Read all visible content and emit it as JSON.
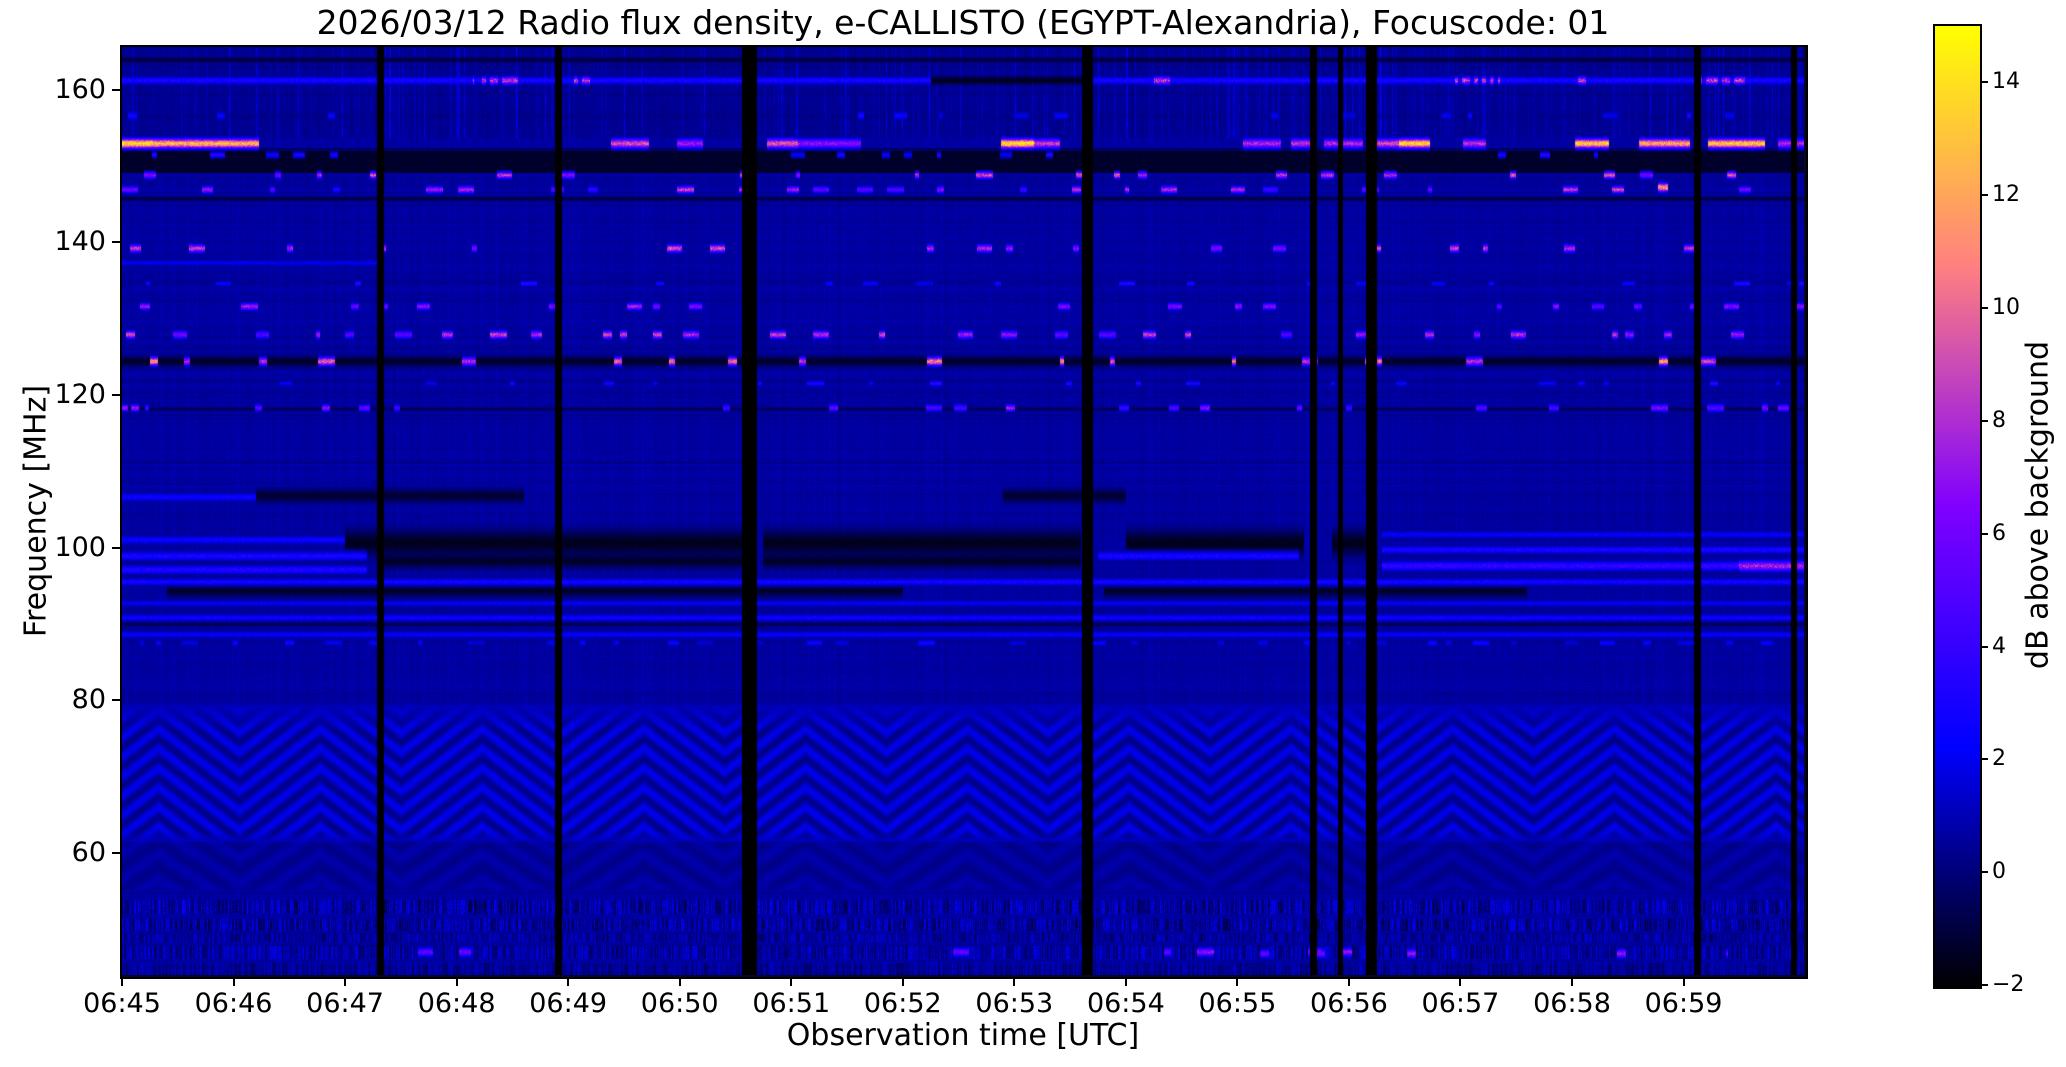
{
  "title": "2026/03/12  Radio flux density, e-CALLISTO (EGYPT-Alexandria), Focuscode: 01",
  "chart_data": {
    "type": "heatmap",
    "title": "2026/03/12  Radio flux density, e-CALLISTO (EGYPT-Alexandria), Focuscode: 01",
    "xlabel": "Observation time [UTC]",
    "ylabel": "Frequency [MHz]",
    "colorbar_label": "dB above background",
    "x_start_utc": "06:45",
    "x_end_utc": "07:00",
    "x_range_min": [
      0,
      15.08
    ],
    "x_tick_minutes": [
      0,
      1,
      2,
      3,
      4,
      5,
      6,
      7,
      8,
      9,
      10,
      11,
      12,
      13,
      14
    ],
    "x_tick_labels": [
      "06:45",
      "06:46",
      "06:47",
      "06:48",
      "06:49",
      "06:50",
      "06:51",
      "06:52",
      "06:53",
      "06:54",
      "06:55",
      "06:56",
      "06:57",
      "06:58",
      "06:59"
    ],
    "y_range_mhz": [
      44,
      165.6
    ],
    "y_tick_values": [
      160,
      140,
      120,
      100,
      80,
      60
    ],
    "y_tick_labels": [
      "160",
      "140",
      "120",
      "100",
      "80",
      "60"
    ],
    "colorbar": {
      "vmin": -2,
      "vmax": 15,
      "tick_values": [
        14,
        12,
        10,
        8,
        6,
        4,
        2,
        0,
        -2
      ],
      "tick_labels": [
        "14",
        "12",
        "10",
        "8",
        "6",
        "4",
        "2",
        "0",
        "−2"
      ],
      "colormap": "gnuplot2",
      "colormap_stops": [
        "#000000",
        "#000078",
        "#0000f0",
        "#3500ff",
        "#7000ff",
        "#ac2dd2",
        "#e96996",
        "#ffa55a",
        "#ffe11e",
        "#ffffff"
      ]
    },
    "grid": false,
    "legend": "none",
    "description": "Solar radio spectrogram: dark-blue noise background; continuous interference line at 161 MHz; strong intermittent carrier at 153 MHz reaching saturation (white); RFI dash rows near 149, 147, 139, 131.5, 128, 124, 118 MHz; dark FM-broadcast absorption bands 94-102 MHz; ionospheric fringe chevron pattern 62-80 MHz; speckled bands 44-54 MHz; vertical black data-gap columns.",
    "features": {
      "gaps": [
        [
          2.31,
          0.055
        ],
        [
          3.91,
          0.05
        ],
        [
          5.62,
          0.125
        ],
        [
          8.65,
          0.09
        ],
        [
          10.68,
          0.05
        ],
        [
          10.92,
          0.04
        ],
        [
          11.2,
          0.085
        ],
        [
          14.12,
          0.05
        ],
        [
          14.99,
          0.045
        ]
      ],
      "cap_band": {
        "f0": 153.8,
        "f1": 165.6
      },
      "purple_line": {
        "f": 161.2,
        "halfw": 0.45,
        "v": 3.1,
        "black_intervals": [
          [
            7.25,
            8.66
          ]
        ],
        "blip_clusters": [
          [
            3.15,
            3.55
          ],
          [
            4.05,
            4.2
          ],
          [
            7.9,
            8.15
          ],
          [
            9.25,
            9.4
          ],
          [
            11.95,
            12.35
          ],
          [
            13.05,
            13.2
          ],
          [
            14.15,
            14.55
          ]
        ],
        "blip_v": 8.5
      },
      "dark_under": {
        "f0": 149.2,
        "f1": 152.45,
        "v": -1.55
      },
      "line153": {
        "f": 152.95,
        "halfw": 0.55,
        "bg": -1.8,
        "segments": [
          [
            0.0,
            0.28,
            14.5
          ],
          [
            0.28,
            1.22,
            13
          ],
          [
            4.38,
            4.72,
            9.5
          ],
          [
            4.98,
            5.2,
            7.5
          ],
          [
            5.78,
            6.06,
            10
          ],
          [
            6.06,
            6.62,
            7
          ],
          [
            7.88,
            8.18,
            14.5
          ],
          [
            8.18,
            8.4,
            9
          ],
          [
            10.05,
            10.38,
            8
          ],
          [
            10.48,
            10.68,
            8.5
          ],
          [
            10.78,
            11.12,
            8
          ],
          [
            11.15,
            11.45,
            9.5
          ],
          [
            11.45,
            11.72,
            14
          ],
          [
            12.02,
            12.22,
            8.5
          ],
          [
            13.03,
            13.32,
            13.5
          ],
          [
            13.6,
            14.05,
            12.5
          ],
          [
            14.22,
            14.72,
            13.5
          ],
          [
            14.85,
            15.08,
            8
          ]
        ]
      },
      "dark_bands": [
        {
          "f": 163.9,
          "halfw": 0.3,
          "v": -1.2
        },
        {
          "f": 145.7,
          "halfw": 0.25,
          "v": -1.1
        },
        {
          "f": 124.4,
          "halfw": 0.65,
          "v": -1.5
        },
        {
          "f": 118.15,
          "halfw": 0.2,
          "v": -0.9
        },
        {
          "f": 106.8,
          "halfw": 0.8,
          "v": -1.35,
          "intervals": [
            [
              1.2,
              3.6
            ],
            [
              7.9,
              9.0
            ]
          ]
        },
        {
          "f": 100.6,
          "halfw": 1.5,
          "v": -1.7,
          "intervals": [
            [
              2.0,
              5.58
            ],
            [
              5.75,
              8.6
            ],
            [
              9.0,
              10.6
            ],
            [
              10.85,
              11.18
            ]
          ]
        },
        {
          "f": 98.2,
          "halfw": 0.8,
          "v": -1.5,
          "intervals": [
            [
              2.3,
              5.58
            ],
            [
              5.75,
              8.6
            ]
          ]
        },
        {
          "f": 94.4,
          "halfw": 0.8,
          "v": -1.45,
          "intervals": [
            [
              0.4,
              7.0
            ],
            [
              8.8,
              12.6
            ]
          ]
        },
        {
          "f": 90.0,
          "halfw": 0.3,
          "v": -0.9
        }
      ],
      "lines": [
        {
          "f": 137.3,
          "halfw": 0.35,
          "v": 2.0,
          "intervals": [
            [
              0,
              2.3
            ]
          ]
        },
        {
          "f": 106.6,
          "halfw": 0.5,
          "v": 2.6,
          "intervals": [
            [
              0,
              1.2
            ]
          ]
        },
        {
          "f": 101.0,
          "halfw": 0.5,
          "v": 2.6,
          "intervals": [
            [
              0,
              2.0
            ]
          ]
        },
        {
          "f": 98.9,
          "halfw": 0.5,
          "v": 3.2,
          "intervals": [
            [
              0,
              2.2
            ],
            [
              8.75,
              10.55
            ]
          ]
        },
        {
          "f": 97.1,
          "halfw": 0.5,
          "v": 3.4,
          "intervals": [
            [
              0,
              2.2
            ]
          ]
        },
        {
          "f": 101.7,
          "halfw": 0.4,
          "v": 2.4,
          "intervals": [
            [
              11.3,
              15.08
            ]
          ]
        },
        {
          "f": 99.7,
          "halfw": 0.45,
          "v": 3.2,
          "intervals": [
            [
              11.3,
              15.08
            ]
          ]
        },
        {
          "f": 97.6,
          "halfw": 0.55,
          "v": 4.0,
          "intervals": [
            [
              11.3,
              14.5
            ]
          ]
        },
        {
          "f": 97.6,
          "halfw": 0.6,
          "v": 7.5,
          "intervals": [
            [
              14.5,
              15.08
            ]
          ]
        },
        {
          "f": 95.5,
          "halfw": 0.4,
          "v": 3.0
        },
        {
          "f": 92.7,
          "halfw": 0.35,
          "v": 2.2
        },
        {
          "f": 90.8,
          "halfw": 0.4,
          "v": 2.7
        },
        {
          "f": 88.6,
          "halfw": 0.4,
          "v": 2.3
        }
      ],
      "blip_rows": [
        {
          "f": 156.6,
          "halfw": 0.45,
          "density": 0.22,
          "v": [
            1.8,
            3.2
          ],
          "intervals": [
            [
              0,
              2.35
            ],
            [
              6.0,
              8.5
            ],
            [
              10.3,
              12.2
            ],
            [
              13.25,
              14.45
            ]
          ]
        },
        {
          "f": 151.45,
          "halfw": 0.3,
          "density": 0.3,
          "v": [
            2.2,
            3.8
          ],
          "intervals": [
            [
              0,
              2.5
            ],
            [
              6.0,
              8.5
            ],
            [
              12.3,
              13.45
            ]
          ]
        },
        {
          "f": 148.8,
          "halfw": 0.4,
          "density": 0.05,
          "v": [
            6,
            10
          ]
        },
        {
          "f": 146.9,
          "halfw": 0.4,
          "density": 0.1,
          "v": [
            3,
            9
          ]
        },
        {
          "f": 147.2,
          "halfw": 0.5,
          "density": 0.04,
          "v": [
            9,
            13
          ],
          "intervals": [
            [
              13.3,
              14.0
            ]
          ]
        },
        {
          "f": 139.2,
          "halfw": 0.45,
          "density": 0.08,
          "v": [
            6,
            9.5
          ]
        },
        {
          "f": 134.6,
          "halfw": 0.3,
          "density": 0.05,
          "v": [
            2,
            4
          ]
        },
        {
          "f": 131.6,
          "halfw": 0.4,
          "density": 0.07,
          "v": [
            5,
            8
          ]
        },
        {
          "f": 127.9,
          "halfw": 0.45,
          "density": 0.2,
          "v": [
            4.5,
            9.5
          ]
        },
        {
          "f": 124.4,
          "halfw": 0.5,
          "density": 0.06,
          "v": [
            7,
            12
          ]
        },
        {
          "f": 121.5,
          "halfw": 0.3,
          "density": 0.05,
          "v": [
            2,
            4
          ]
        },
        {
          "f": 118.3,
          "halfw": 0.4,
          "density": 0.1,
          "v": [
            4,
            8
          ]
        },
        {
          "f": 118.3,
          "halfw": 0.45,
          "density": 0.25,
          "v": [
            5,
            8
          ],
          "intervals": [
            [
              14.2,
              14.9
            ]
          ]
        },
        {
          "f": 87.5,
          "halfw": 0.35,
          "density": 0.3,
          "v": [
            1.5,
            3
          ]
        },
        {
          "f": 46.8,
          "halfw": 0.5,
          "density": 0.06,
          "v": [
            4,
            7
          ],
          "intervals": [
            [
              10.2,
              11.6
            ],
            [
              13.4,
              14.4
            ]
          ]
        },
        {
          "f": 47.0,
          "halfw": 0.5,
          "density": 0.02,
          "v": [
            5,
            7
          ]
        }
      ],
      "fringe": {
        "f0": 61.5,
        "f1": 79.5,
        "fade": 3.5,
        "amp": 0.85,
        "spacing": 2.55,
        "period": 1.45,
        "apex": 1.78,
        "skew": 3.2
      },
      "arc_band": {
        "f0": 55.2,
        "f1": 61.5,
        "amp": 0.28,
        "spacing": 3.2,
        "base": 0.42
      },
      "speckle_bands": [
        {
          "f0": 52.0,
          "f1": 53.9,
          "v": [
            -1.6,
            3.0
          ]
        },
        {
          "f0": 49.8,
          "f1": 51.4,
          "v": [
            -1.6,
            2.8
          ]
        },
        {
          "f0": 48.4,
          "f1": 49.4,
          "v": [
            -1.0,
            2.2
          ]
        },
        {
          "f0": 46.2,
          "f1": 47.9,
          "v": [
            -1.2,
            2.6
          ]
        },
        {
          "f0": 44.0,
          "f1": 45.6,
          "v": [
            -0.8,
            1.8
          ]
        }
      ]
    }
  }
}
